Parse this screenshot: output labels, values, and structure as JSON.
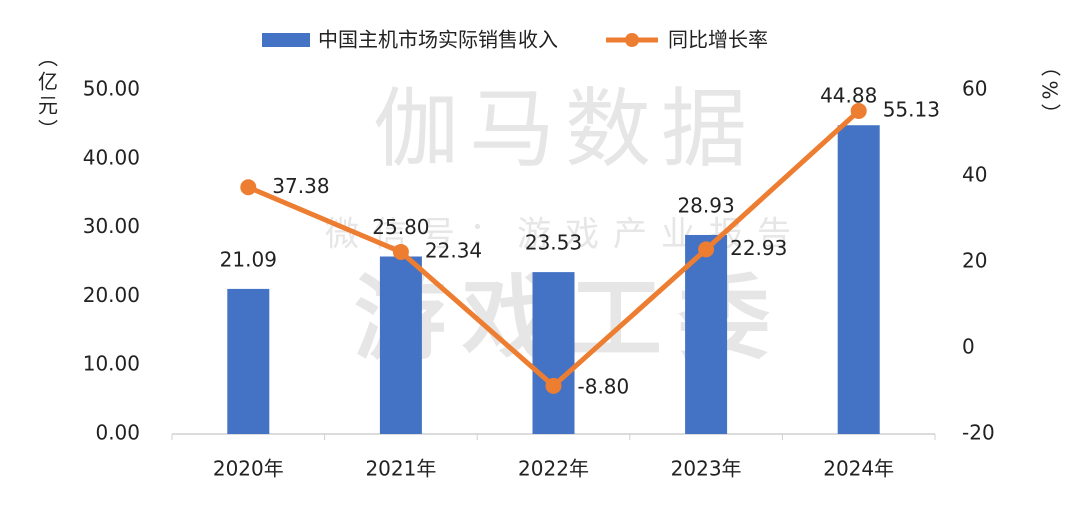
{
  "chart_data": {
    "type": "bar-line",
    "watermarks": [
      "伽马数据",
      "微信号：游戏产业报告",
      "游戏工委"
    ],
    "y_label": "（亿元）",
    "y2_label": "（%）",
    "categories": [
      "2020年",
      "2021年",
      "2022年",
      "2023年",
      "2024年"
    ],
    "series": [
      {
        "name": "中国主机市场实际销售收入",
        "type": "bar",
        "color": "#4472c4",
        "axis": "y",
        "values": [
          21.09,
          25.8,
          23.53,
          28.93,
          44.88
        ],
        "value_labels": [
          "21.09",
          "25.80",
          "23.53",
          "28.93",
          "44.88"
        ]
      },
      {
        "name": "同比增长率",
        "type": "line",
        "color": "#ed7d31",
        "axis": "y2",
        "values": [
          37.38,
          22.34,
          -8.8,
          22.93,
          55.13
        ],
        "value_labels": [
          "37.38",
          "22.34",
          "-8.80",
          "22.93",
          "55.13"
        ]
      }
    ],
    "ylim": [
      0,
      50
    ],
    "yticks": [
      {
        "value": 0,
        "label": "0.00"
      },
      {
        "value": 10,
        "label": "10.00"
      },
      {
        "value": 20,
        "label": "20.00"
      },
      {
        "value": 30,
        "label": "30.00"
      },
      {
        "value": 40,
        "label": "40.00"
      },
      {
        "value": 50,
        "label": "50.00"
      }
    ],
    "y2lim": [
      -20,
      60
    ],
    "y2ticks": [
      -20,
      0,
      20,
      40,
      60
    ],
    "grid": false
  }
}
